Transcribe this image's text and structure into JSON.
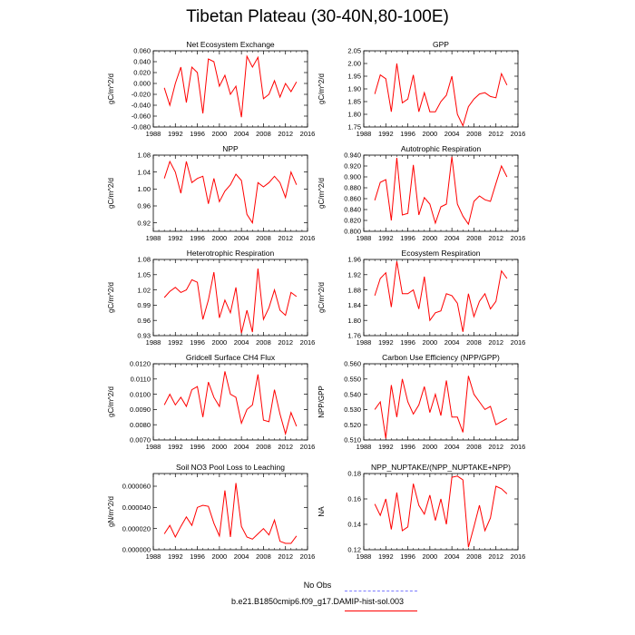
{
  "page_title": "Tibetan Plateau (30-40N,80-100E)",
  "legend": {
    "obs_label": "No Obs",
    "obs_color": "#7b7bff",
    "model_label": "b.e21.B1850cmip6.f09_g17.DAMIP-hist-sol.003",
    "model_color": "#ff0000"
  },
  "chart_data": [
    {
      "type": "line",
      "title": "Net Ecosystem Exchange",
      "ylabel": "gC/m^2/d",
      "xlim": [
        1988,
        2016
      ],
      "xticks": [
        1988,
        1992,
        1996,
        2000,
        2004,
        2008,
        2012,
        2016
      ],
      "ylim": [
        -0.08,
        0.06
      ],
      "yticks": [
        -0.08,
        -0.06,
        -0.04,
        -0.02,
        0.0,
        0.02,
        0.04,
        0.06
      ],
      "ytick_labels": [
        "-0.080",
        "-0.060",
        "-0.040",
        "-0.020",
        "0.000",
        "0.020",
        "0.040",
        "0.060"
      ],
      "x": [
        1990,
        1991,
        1992,
        1993,
        1994,
        1995,
        1996,
        1997,
        1998,
        1999,
        2000,
        2001,
        2002,
        2003,
        2004,
        2005,
        2006,
        2007,
        2008,
        2009,
        2010,
        2011,
        2012,
        2013,
        2014
      ],
      "series": [
        {
          "color": "#ff0000",
          "values": [
            -0.008,
            -0.04,
            0.0,
            0.03,
            -0.035,
            0.03,
            0.02,
            -0.055,
            0.045,
            0.04,
            -0.005,
            0.015,
            -0.02,
            -0.005,
            -0.062,
            0.05,
            0.03,
            0.048,
            -0.028,
            -0.02,
            0.005,
            -0.025,
            0.0,
            -0.015,
            0.003
          ]
        }
      ]
    },
    {
      "type": "line",
      "title": "GPP",
      "ylabel": "gC/m^2/d",
      "xlim": [
        1988,
        2016
      ],
      "xticks": [
        1988,
        1992,
        1996,
        2000,
        2004,
        2008,
        2012,
        2016
      ],
      "ylim": [
        1.75,
        2.05
      ],
      "yticks": [
        1.75,
        1.8,
        1.85,
        1.9,
        1.95,
        2.0,
        2.05
      ],
      "ytick_labels": [
        "1.75",
        "1.80",
        "1.85",
        "1.90",
        "1.95",
        "2.00",
        "2.05"
      ],
      "x": [
        1990,
        1991,
        1992,
        1993,
        1994,
        1995,
        1996,
        1997,
        1998,
        1999,
        2000,
        2001,
        2002,
        2003,
        2004,
        2005,
        2006,
        2007,
        2008,
        2009,
        2010,
        2011,
        2012,
        2013,
        2014
      ],
      "series": [
        {
          "color": "#ff0000",
          "values": [
            1.88,
            1.955,
            1.94,
            1.81,
            2.0,
            1.845,
            1.86,
            1.955,
            1.81,
            1.885,
            1.81,
            1.81,
            1.85,
            1.875,
            1.95,
            1.8,
            1.755,
            1.83,
            1.86,
            1.88,
            1.885,
            1.87,
            1.865,
            1.96,
            1.915
          ]
        }
      ]
    },
    {
      "type": "line",
      "title": "NPP",
      "ylabel": "gC/m^2/d",
      "xlim": [
        1988,
        2016
      ],
      "xticks": [
        1988,
        1992,
        1996,
        2000,
        2004,
        2008,
        2012,
        2016
      ],
      "ylim": [
        0.9,
        1.08
      ],
      "yticks": [
        0.92,
        0.96,
        1.0,
        1.04,
        1.08
      ],
      "ytick_labels": [
        "0.92",
        "0.96",
        "1.00",
        "1.04",
        "1.08"
      ],
      "x": [
        1990,
        1991,
        1992,
        1993,
        1994,
        1995,
        1996,
        1997,
        1998,
        1999,
        2000,
        2001,
        2002,
        2003,
        2004,
        2005,
        2006,
        2007,
        2008,
        2009,
        2010,
        2011,
        2012,
        2013,
        2014
      ],
      "series": [
        {
          "color": "#ff0000",
          "values": [
            1.025,
            1.065,
            1.04,
            0.99,
            1.065,
            1.015,
            1.025,
            1.03,
            0.965,
            1.025,
            0.97,
            0.995,
            1.01,
            1.035,
            1.02,
            0.94,
            0.92,
            1.015,
            1.005,
            1.015,
            1.03,
            1.015,
            0.98,
            1.04,
            1.01
          ]
        }
      ]
    },
    {
      "type": "line",
      "title": "Autotrophic Respiration",
      "ylabel": "gC/m^2/d",
      "xlim": [
        1988,
        2016
      ],
      "xticks": [
        1988,
        1992,
        1996,
        2000,
        2004,
        2008,
        2012,
        2016
      ],
      "ylim": [
        0.8,
        0.94
      ],
      "yticks": [
        0.8,
        0.82,
        0.84,
        0.86,
        0.88,
        0.9,
        0.92,
        0.94
      ],
      "ytick_labels": [
        "0.800",
        "0.820",
        "0.840",
        "0.860",
        "0.880",
        "0.900",
        "0.920",
        "0.940"
      ],
      "x": [
        1990,
        1991,
        1992,
        1993,
        1994,
        1995,
        1996,
        1997,
        1998,
        1999,
        2000,
        2001,
        2002,
        2003,
        2004,
        2005,
        2006,
        2007,
        2008,
        2009,
        2010,
        2011,
        2012,
        2013,
        2014
      ],
      "series": [
        {
          "color": "#ff0000",
          "values": [
            0.857,
            0.89,
            0.895,
            0.82,
            0.935,
            0.83,
            0.833,
            0.922,
            0.83,
            0.862,
            0.85,
            0.815,
            0.845,
            0.85,
            0.937,
            0.85,
            0.828,
            0.813,
            0.855,
            0.865,
            0.858,
            0.855,
            0.888,
            0.92,
            0.9
          ]
        }
      ]
    },
    {
      "type": "line",
      "title": "Heterotrophic Respiration",
      "ylabel": "gC/m^2/d",
      "xlim": [
        1988,
        2016
      ],
      "xticks": [
        1988,
        1992,
        1996,
        2000,
        2004,
        2008,
        2012,
        2016
      ],
      "ylim": [
        0.93,
        1.08
      ],
      "yticks": [
        0.93,
        0.96,
        0.99,
        1.02,
        1.05,
        1.08
      ],
      "ytick_labels": [
        "0.93",
        "0.96",
        "0.99",
        "1.02",
        "1.05",
        "1.08"
      ],
      "x": [
        1990,
        1991,
        1992,
        1993,
        1994,
        1995,
        1996,
        1997,
        1998,
        1999,
        2000,
        2001,
        2002,
        2003,
        2004,
        2005,
        2006,
        2007,
        2008,
        2009,
        2010,
        2011,
        2012,
        2013,
        2014
      ],
      "series": [
        {
          "color": "#ff0000",
          "values": [
            1.005,
            1.017,
            1.025,
            1.015,
            1.02,
            1.04,
            1.035,
            0.962,
            1.0,
            1.055,
            0.965,
            1.0,
            0.975,
            1.025,
            0.935,
            0.98,
            0.937,
            1.062,
            0.962,
            0.985,
            1.02,
            0.98,
            0.97,
            1.015,
            1.007
          ]
        }
      ]
    },
    {
      "type": "line",
      "title": "Ecosystem Respiration",
      "ylabel": "gC/m^2/d",
      "xlim": [
        1988,
        2016
      ],
      "xticks": [
        1988,
        1992,
        1996,
        2000,
        2004,
        2008,
        2012,
        2016
      ],
      "ylim": [
        1.76,
        1.96
      ],
      "yticks": [
        1.76,
        1.8,
        1.84,
        1.88,
        1.92,
        1.96
      ],
      "ytick_labels": [
        "1.76",
        "1.80",
        "1.84",
        "1.88",
        "1.92",
        "1.96"
      ],
      "x": [
        1990,
        1991,
        1992,
        1993,
        1994,
        1995,
        1996,
        1997,
        1998,
        1999,
        2000,
        2001,
        2002,
        2003,
        2004,
        2005,
        2006,
        2007,
        2008,
        2009,
        2010,
        2011,
        2012,
        2013,
        2014
      ],
      "series": [
        {
          "color": "#ff0000",
          "values": [
            1.865,
            1.91,
            1.925,
            1.835,
            1.955,
            1.87,
            1.87,
            1.88,
            1.83,
            1.915,
            1.8,
            1.82,
            1.825,
            1.87,
            1.865,
            1.845,
            1.77,
            1.87,
            1.81,
            1.85,
            1.87,
            1.83,
            1.85,
            1.93,
            1.91
          ]
        }
      ]
    },
    {
      "type": "line",
      "title": "Gridcell Surface CH4 Flux",
      "ylabel": "gC/m^2/d",
      "xlim": [
        1988,
        2016
      ],
      "xticks": [
        1988,
        1992,
        1996,
        2000,
        2004,
        2008,
        2012,
        2016
      ],
      "ylim": [
        0.007,
        0.012
      ],
      "yticks": [
        0.007,
        0.008,
        0.009,
        0.01,
        0.011,
        0.012
      ],
      "ytick_labels": [
        "0.0070",
        "0.0080",
        "0.0090",
        "0.0100",
        "0.0110",
        "0.0120"
      ],
      "x": [
        1990,
        1991,
        1992,
        1993,
        1994,
        1995,
        1996,
        1997,
        1998,
        1999,
        2000,
        2001,
        2002,
        2003,
        2004,
        2005,
        2006,
        2007,
        2008,
        2009,
        2010,
        2011,
        2012,
        2013,
        2014
      ],
      "series": [
        {
          "color": "#ff0000",
          "values": [
            0.0093,
            0.01,
            0.0093,
            0.0098,
            0.0092,
            0.0103,
            0.0105,
            0.0085,
            0.0108,
            0.0098,
            0.0092,
            0.0115,
            0.01,
            0.0098,
            0.0081,
            0.009,
            0.0093,
            0.0113,
            0.0083,
            0.0082,
            0.0103,
            0.0087,
            0.0074,
            0.0088,
            0.0079
          ]
        }
      ]
    },
    {
      "type": "line",
      "title": "Carbon Use Efficiency (NPP/GPP)",
      "ylabel": "NPP/GPP",
      "xlim": [
        1988,
        2016
      ],
      "xticks": [
        1988,
        1992,
        1996,
        2000,
        2004,
        2008,
        2012,
        2016
      ],
      "ylim": [
        0.51,
        0.56
      ],
      "yticks": [
        0.51,
        0.52,
        0.53,
        0.54,
        0.55,
        0.56
      ],
      "ytick_labels": [
        "0.510",
        "0.520",
        "0.530",
        "0.540",
        "0.550",
        "0.560"
      ],
      "x": [
        1990,
        1991,
        1992,
        1993,
        1994,
        1995,
        1996,
        1997,
        1998,
        1999,
        2000,
        2001,
        2002,
        2003,
        2004,
        2005,
        2006,
        2007,
        2008,
        2009,
        2010,
        2011,
        2012,
        2013,
        2014
      ],
      "series": [
        {
          "color": "#ff0000",
          "values": [
            0.53,
            0.535,
            0.511,
            0.546,
            0.525,
            0.55,
            0.535,
            0.527,
            0.533,
            0.545,
            0.528,
            0.54,
            0.526,
            0.549,
            0.525,
            0.525,
            0.515,
            0.552,
            0.54,
            0.535,
            0.53,
            0.532,
            0.52,
            0.522,
            0.524
          ]
        }
      ]
    },
    {
      "type": "line",
      "title": "Soil NO3 Pool Loss to Leaching",
      "ylabel": "gN/m^2/d",
      "xlim": [
        1988,
        2016
      ],
      "xticks": [
        1988,
        1992,
        1996,
        2000,
        2004,
        2008,
        2012,
        2016
      ],
      "ylim": [
        0.0,
        7.2e-05
      ],
      "yticks": [
        0.0,
        2e-05,
        4e-05,
        6e-05
      ],
      "ytick_labels": [
        "0.000000",
        "0.000020",
        "0.000040",
        "0.000060"
      ],
      "x": [
        1990,
        1991,
        1992,
        1993,
        1994,
        1995,
        1996,
        1997,
        1998,
        1999,
        2000,
        2001,
        2002,
        2003,
        2004,
        2005,
        2006,
        2007,
        2008,
        2009,
        2010,
        2011,
        2012,
        2013,
        2014
      ],
      "series": [
        {
          "color": "#ff0000",
          "values": [
            1.5e-05,
            2.3e-05,
            1.2e-05,
            2.2e-05,
            3.1e-05,
            2.3e-05,
            4e-05,
            4.2e-05,
            4.1e-05,
            2.5e-05,
            1.3e-05,
            5.6e-05,
            1.2e-05,
            6.3e-05,
            2.2e-05,
            1.2e-05,
            1e-05,
            1.5e-05,
            2e-05,
            1.4e-05,
            2.8e-05,
            8e-06,
            6e-06,
            6e-06,
            1.3e-05
          ]
        }
      ]
    },
    {
      "type": "line",
      "title": "NPP_NUPTAKE/(NPP_NUPTAKE+NPP)",
      "ylabel": "NA",
      "xlim": [
        1988,
        2016
      ],
      "xticks": [
        1988,
        1992,
        1996,
        2000,
        2004,
        2008,
        2012,
        2016
      ],
      "ylim": [
        0.12,
        0.18
      ],
      "yticks": [
        0.12,
        0.14,
        0.16,
        0.18
      ],
      "ytick_labels": [
        "0.12",
        "0.14",
        "0.16",
        "0.18"
      ],
      "x": [
        1990,
        1991,
        1992,
        1993,
        1994,
        1995,
        1996,
        1997,
        1998,
        1999,
        2000,
        2001,
        2002,
        2003,
        2004,
        2005,
        2006,
        2007,
        2008,
        2009,
        2010,
        2011,
        2012,
        2013,
        2014
      ],
      "series": [
        {
          "color": "#ff0000",
          "values": [
            0.156,
            0.147,
            0.16,
            0.136,
            0.165,
            0.135,
            0.138,
            0.172,
            0.155,
            0.148,
            0.163,
            0.143,
            0.16,
            0.14,
            0.177,
            0.178,
            0.175,
            0.122,
            0.138,
            0.155,
            0.135,
            0.145,
            0.17,
            0.168,
            0.164
          ]
        }
      ]
    }
  ]
}
